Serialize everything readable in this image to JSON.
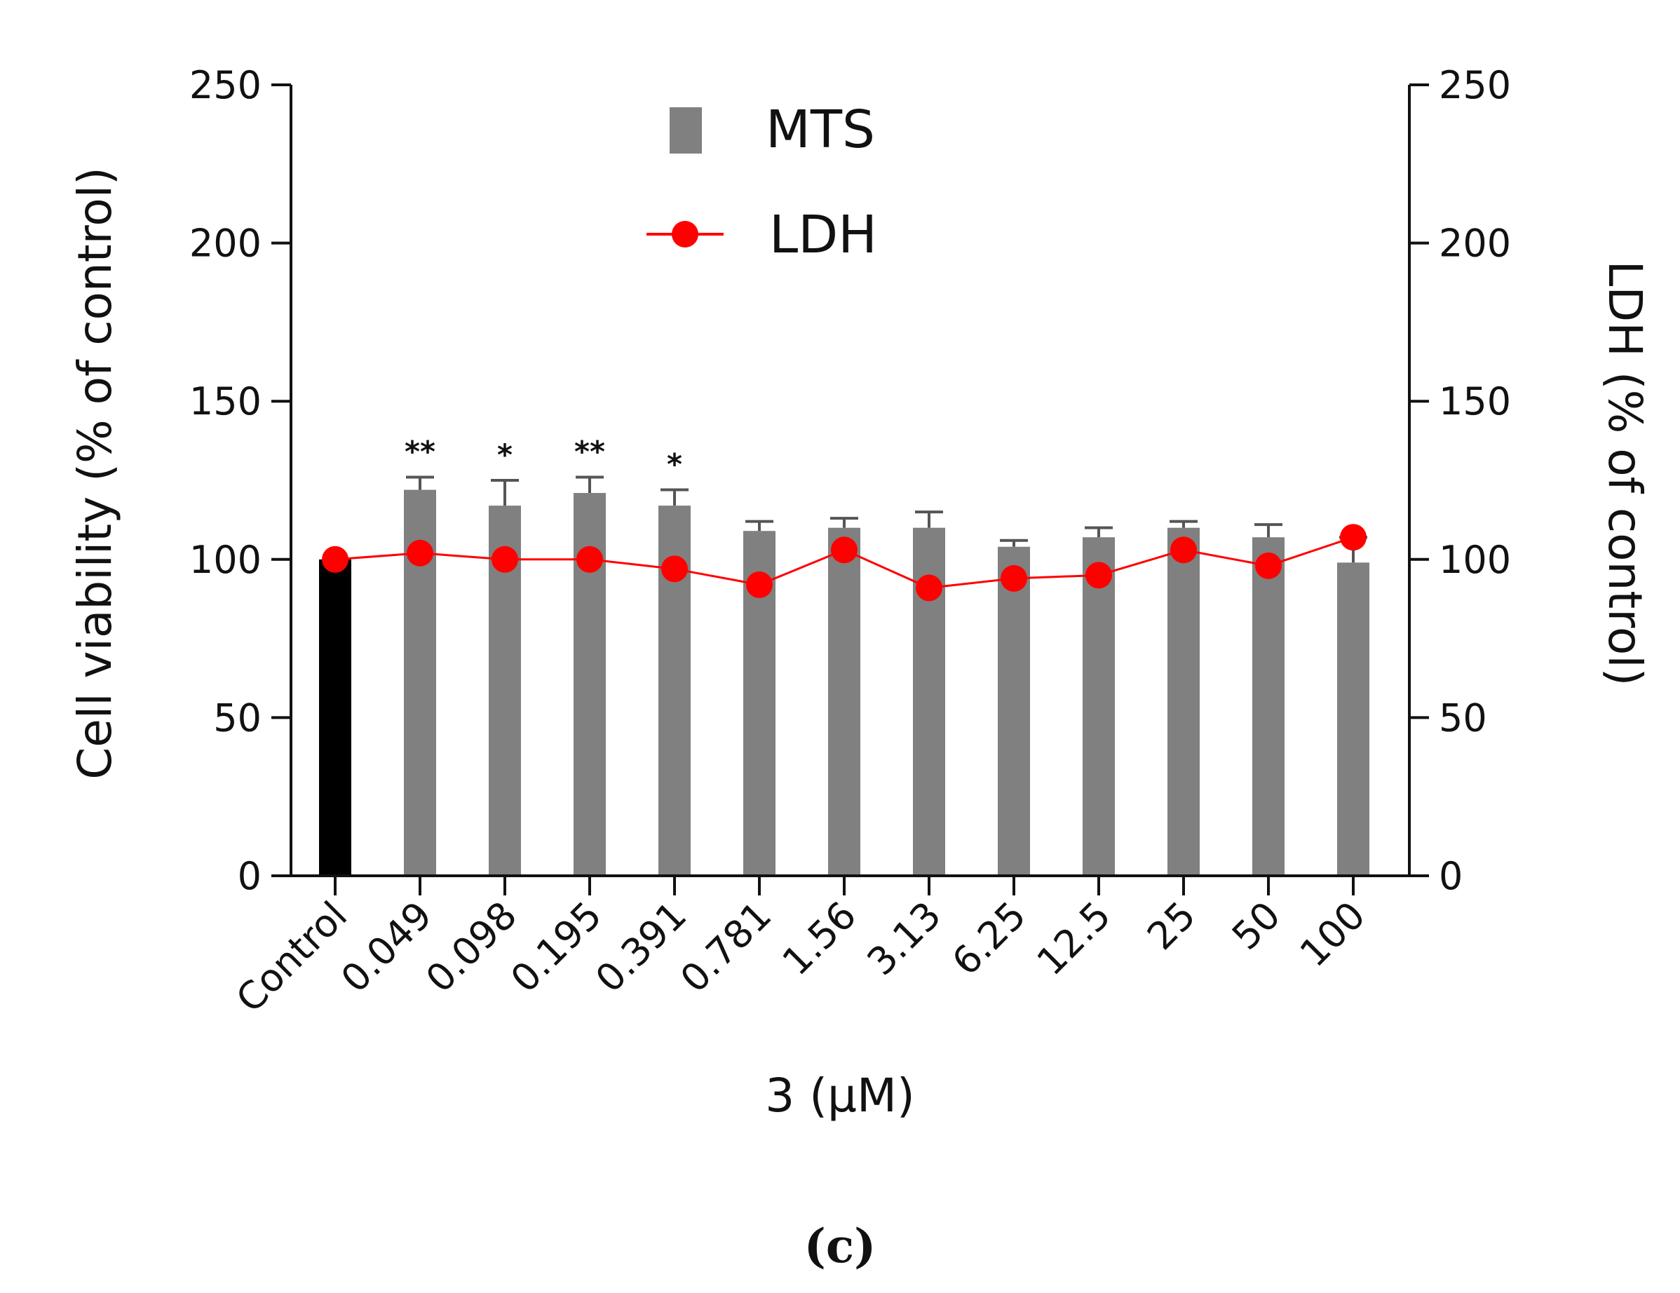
{
  "chart_data": {
    "type": "bar",
    "categories": [
      "Control",
      "0.049",
      "0.098",
      "0.195",
      "0.391",
      "0.781",
      "1.56",
      "3.13",
      "6.25",
      "12.5",
      "25",
      "50",
      "100"
    ],
    "series": [
      {
        "name": "MTS",
        "type": "bar",
        "axis": "left",
        "values": [
          100,
          122,
          117,
          121,
          117,
          109,
          110,
          110,
          104,
          107,
          110,
          107,
          99
        ],
        "errors": [
          0,
          4,
          8,
          5,
          5,
          3,
          3,
          5,
          2,
          3,
          2,
          4,
          8
        ]
      },
      {
        "name": "LDH",
        "type": "line",
        "axis": "right",
        "values": [
          100,
          102,
          100,
          100,
          97,
          92,
          103,
          91,
          94,
          95,
          103,
          98,
          107
        ]
      }
    ],
    "significance": [
      "",
      "**",
      "*",
      "**",
      "*",
      "",
      "",
      "",
      "",
      "",
      "",
      "",
      ""
    ],
    "ylabel": "Cell viability (% of control)",
    "y2label": "LDH (% of control)",
    "xlabel": "3 (μM)",
    "ylim": [
      0,
      250
    ],
    "y2lim": [
      0,
      250
    ],
    "yticks": [
      0,
      50,
      100,
      150,
      200,
      250
    ],
    "legend": [
      "MTS",
      "LDH"
    ],
    "legend_position": "top-center",
    "panel_label": "(c)",
    "colors": {
      "control_bar": "#000000",
      "bar": "#808080",
      "ldh": "#ff0000"
    }
  }
}
